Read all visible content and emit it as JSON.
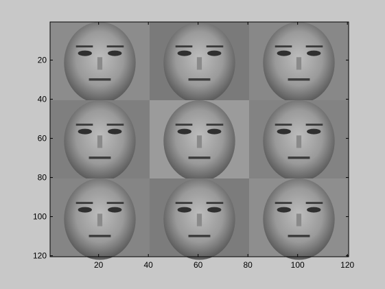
{
  "chart_data": {
    "type": "heatmap",
    "title": "",
    "xlabel": "",
    "ylabel": "",
    "xlim": [
      0.5,
      120.5
    ],
    "ylim": [
      0.5,
      120.5
    ],
    "y_direction": "reversed",
    "grid": false,
    "colormap": "gray",
    "x_ticks": [
      20,
      40,
      60,
      80,
      100,
      120
    ],
    "y_ticks": [
      20,
      40,
      60,
      80,
      100,
      120
    ],
    "montage": {
      "rows": 3,
      "cols": 3,
      "tile_size": 40,
      "content": "grayscale face images"
    },
    "tick_labels": {
      "x": [
        "20",
        "40",
        "60",
        "80",
        "100",
        "120"
      ],
      "y": [
        "20",
        "40",
        "60",
        "80",
        "100",
        "120"
      ]
    }
  }
}
